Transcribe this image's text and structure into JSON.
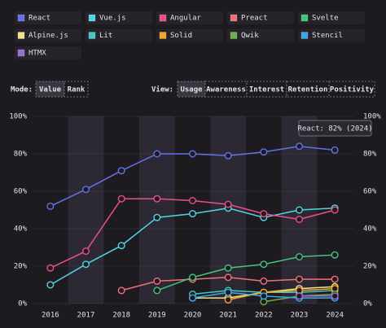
{
  "controls": {
    "mode_label": "Mode:",
    "mode_options": [
      "Value",
      "Rank"
    ],
    "mode_selected": 0,
    "view_label": "View:",
    "view_options": [
      "Usage",
      "Awareness",
      "Interest",
      "Retention",
      "Positivity"
    ],
    "view_selected": 0
  },
  "chart_data": {
    "type": "line",
    "categories": [
      "2016",
      "2017",
      "2018",
      "2019",
      "2020",
      "2021",
      "2022",
      "2023",
      "2024"
    ],
    "ylim": [
      0,
      100
    ],
    "yticks": [
      {
        "value": 0,
        "label": "0%"
      },
      {
        "value": 20,
        "label": "20%"
      },
      {
        "value": 40,
        "label": "40%"
      },
      {
        "value": 60,
        "label": "60%"
      },
      {
        "value": 80,
        "label": "80%"
      },
      {
        "value": 100,
        "label": "100%"
      }
    ],
    "grid": true,
    "tooltip": "React: 82% (2024)",
    "series": [
      {
        "name": "React",
        "color": "#6272e6",
        "values": [
          52,
          61,
          71,
          80,
          80,
          79,
          81,
          84,
          82
        ]
      },
      {
        "name": "Vue.js",
        "color": "#4fd6e3",
        "values": [
          10,
          21,
          31,
          46,
          48,
          51,
          46,
          50,
          51
        ]
      },
      {
        "name": "Angular",
        "color": "#ea4f86",
        "values": [
          19,
          28,
          56,
          56,
          55,
          53,
          48,
          45,
          50
        ]
      },
      {
        "name": "Preact",
        "color": "#f0707a",
        "values": [
          null,
          null,
          7,
          12,
          13,
          14,
          12,
          13,
          13
        ]
      },
      {
        "name": "Svelte",
        "color": "#41c47c",
        "values": [
          null,
          null,
          null,
          7,
          14,
          19,
          21,
          25,
          26
        ]
      },
      {
        "name": "Alpine.js",
        "color": "#f2e48f",
        "values": [
          null,
          null,
          null,
          null,
          3,
          3,
          6,
          8,
          9
        ]
      },
      {
        "name": "Lit",
        "color": "#43c9c1",
        "values": [
          null,
          null,
          null,
          null,
          5,
          7,
          6,
          6,
          7
        ]
      },
      {
        "name": "Solid",
        "color": "#f5a623",
        "values": [
          null,
          null,
          null,
          null,
          null,
          2,
          6,
          7,
          8
        ]
      },
      {
        "name": "Qwik",
        "color": "#6fb04a",
        "values": [
          null,
          null,
          null,
          null,
          null,
          null,
          1,
          4,
          5
        ]
      },
      {
        "name": "Stencil",
        "color": "#3ea6e5",
        "values": [
          null,
          null,
          null,
          null,
          3,
          6,
          4,
          3,
          3
        ]
      },
      {
        "name": "HTMX",
        "color": "#9b6ad8",
        "values": [
          null,
          null,
          null,
          null,
          null,
          null,
          null,
          4,
          4
        ]
      }
    ]
  }
}
